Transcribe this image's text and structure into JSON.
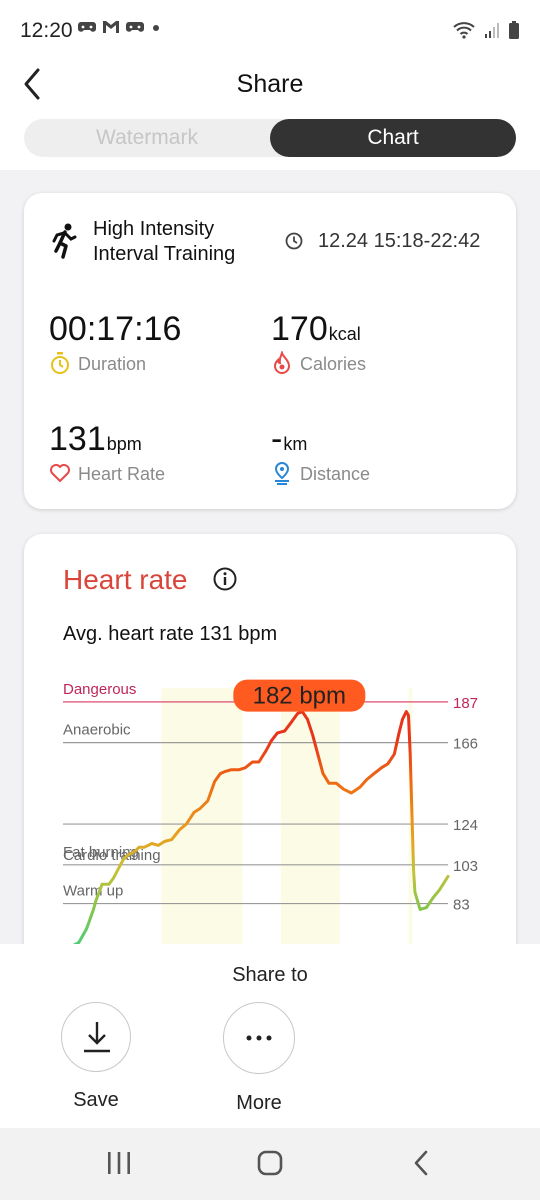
{
  "status": {
    "time": "12:20"
  },
  "header": {
    "title": "Share"
  },
  "tabs": [
    {
      "label": "Watermark",
      "selected": false
    },
    {
      "label": "Chart",
      "selected": true
    }
  ],
  "summary": {
    "workout_name": "High Intensity Interval Training",
    "time_range": "12.24 15:18-22:42",
    "duration": {
      "value": "00:17:16",
      "unit": "",
      "label": "Duration"
    },
    "calories": {
      "value": "170",
      "unit": "kcal",
      "label": "Calories"
    },
    "heart_rate": {
      "value": "131",
      "unit": "bpm",
      "label": "Heart Rate"
    },
    "distance": {
      "value": "-",
      "unit": "km",
      "label": "Distance"
    }
  },
  "heart_rate_card": {
    "title": "Heart rate",
    "avg_text": "Avg. heart rate 131 bpm",
    "peak_label": "182 bpm"
  },
  "chart_data": {
    "type": "line",
    "zones": [
      {
        "name": "Dangerous",
        "threshold": 187
      },
      {
        "name": "Anaerobic",
        "threshold": 166
      },
      {
        "name": "Cardio training",
        "threshold": 124
      },
      {
        "name": "Fat burning",
        "threshold": 103
      },
      {
        "name": "Warm up",
        "threshold": 83
      }
    ],
    "ylim": [
      57,
      189
    ],
    "x": [
      0,
      1.6,
      3.4,
      5,
      5.5,
      7,
      8.6,
      9.6,
      10.8,
      12,
      13,
      14.7,
      15.6,
      16.8,
      18.6,
      20.1,
      21.5,
      23.2,
      25,
      26.6,
      28.4,
      29.8,
      31.6,
      33.2,
      34.5,
      35.5,
      37,
      38.8,
      40.3,
      42,
      43.5,
      45.2,
      46.4,
      47.8,
      49.5,
      51.2,
      52.5,
      53.6,
      54.8,
      56,
      57.2,
      58.4,
      59.8,
      61.5,
      63.2,
      65,
      67,
      68.6,
      70.3,
      72,
      73.5,
      75,
      76,
      76.9,
      77.8,
      78.3,
      78.7,
      79.1,
      79.5,
      79.8,
      80.2,
      81,
      82.5,
      84,
      85.5,
      87.5
    ],
    "y": [
      61,
      63,
      70,
      80,
      84,
      93,
      93,
      96,
      101,
      106,
      108,
      110,
      112,
      112,
      114,
      113,
      115,
      116,
      121,
      124,
      130,
      132,
      136,
      146,
      150,
      151,
      152,
      152,
      153,
      156,
      156,
      162,
      167,
      171,
      172,
      177,
      181,
      182,
      178,
      170,
      160,
      150,
      145,
      145,
      142,
      140,
      143,
      147,
      150,
      153,
      155,
      160,
      170,
      178,
      182,
      180,
      160,
      130,
      100,
      89,
      86,
      80,
      81,
      86,
      90,
      97
    ],
    "shaded_x_ranges": [
      [
        20.8,
        39.7
      ],
      [
        48.6,
        62.3
      ],
      [
        78.3,
        79.2
      ]
    ],
    "peak_value": 182
  },
  "share": {
    "title": "Share to",
    "save_label": "Save",
    "more_label": "More"
  }
}
